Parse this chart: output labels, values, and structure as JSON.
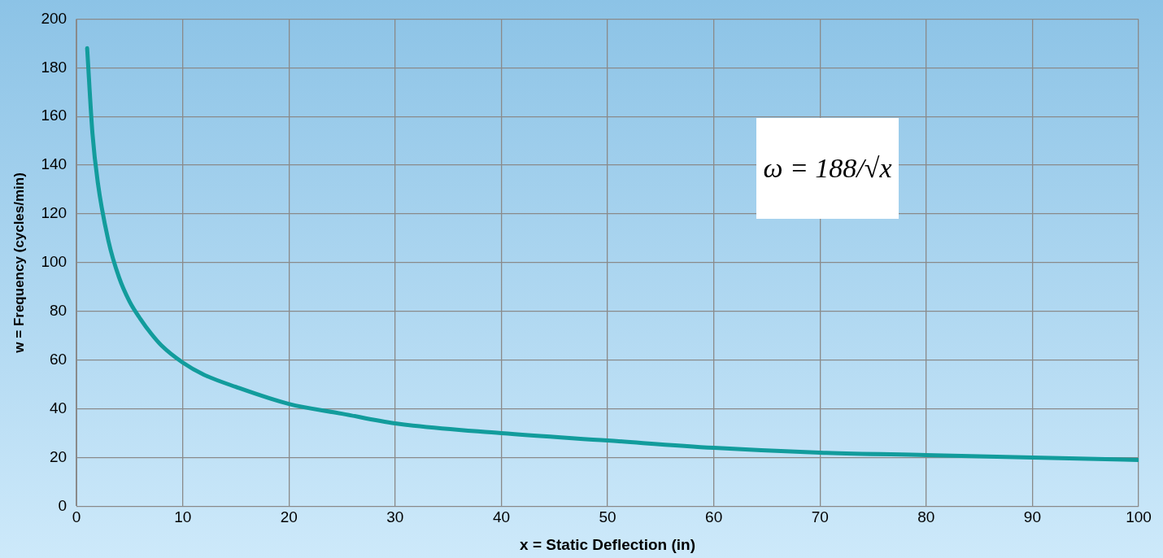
{
  "chart_data": {
    "type": "line",
    "xlabel": "x = Static Deflection (in)",
    "ylabel": "w = Frequency (cycles/min)",
    "x": [
      1,
      1.5,
      2,
      3,
      4,
      5,
      6,
      7,
      8,
      10,
      12,
      15,
      20,
      25,
      30,
      40,
      50,
      60,
      70,
      80,
      90,
      100
    ],
    "series": [
      {
        "color": "#129c9c",
        "values": [
          188,
          153,
          133,
          109,
          94,
          84,
          77,
          71,
          66,
          59,
          54,
          49,
          42,
          38,
          34,
          30,
          27,
          24,
          22,
          21,
          20,
          19
        ]
      }
    ],
    "xlim": [
      0,
      100
    ],
    "xticks": [
      0,
      10,
      20,
      30,
      40,
      50,
      60,
      70,
      80,
      90,
      100
    ],
    "ylim": [
      0,
      200
    ],
    "yticks": [
      0,
      20,
      40,
      60,
      80,
      100,
      120,
      140,
      160,
      180,
      200
    ],
    "grid": true,
    "legend": false,
    "marker": "none",
    "line_style": "solid",
    "annotations": [
      {
        "text": "ω = 188/√x"
      }
    ]
  }
}
